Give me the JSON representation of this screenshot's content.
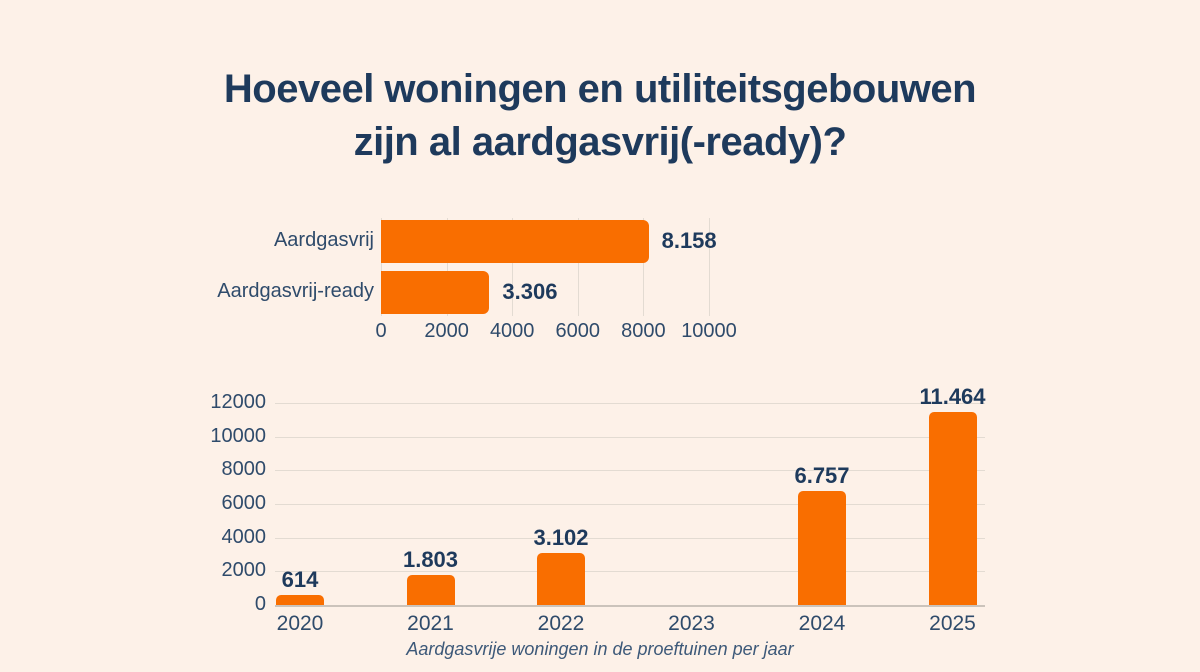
{
  "page": {
    "title_line1": "Hoeveel woningen en utiliteitsgebouwen",
    "title_line2": "zijn al aardgasvrij(-ready)?"
  },
  "colors": {
    "background": "#FDF1E8",
    "bar_orange": "#F96E00",
    "navy_dark": "#1E3A5C",
    "axis_text": "#2F4B6B",
    "caption_text": "#3D5979",
    "gridline": "#E3DBD2",
    "axis_line": "#CBC3BB"
  },
  "chart_data": [
    {
      "name": "aardgasvrij-status",
      "type": "bar",
      "orientation": "horizontal",
      "categories": [
        "Aardgasvrij",
        "Aardgasvrij-ready"
      ],
      "values": [
        8158,
        3306
      ],
      "value_labels": [
        "8.158",
        "3.306"
      ],
      "xlim": [
        0,
        10000
      ],
      "x_ticks": [
        0,
        2000,
        4000,
        6000,
        8000,
        10000
      ],
      "grid": true,
      "legend": false,
      "title": ""
    },
    {
      "name": "aardgasvrije-woningen-per-jaar",
      "type": "bar",
      "orientation": "vertical",
      "categories": [
        "2020",
        "2021",
        "2022",
        "2023",
        "2024",
        "2025"
      ],
      "values": [
        614,
        1803,
        3102,
        null,
        6757,
        11464
      ],
      "value_labels": [
        "614",
        "1.803",
        "3.102",
        "",
        "6.757",
        "11.464"
      ],
      "ylim": [
        0,
        12000
      ],
      "y_ticks": [
        0,
        2000,
        4000,
        6000,
        8000,
        10000,
        12000
      ],
      "grid": true,
      "legend": false,
      "caption": "Aardgasvrije woningen in de proeftuinen per jaar"
    }
  ]
}
